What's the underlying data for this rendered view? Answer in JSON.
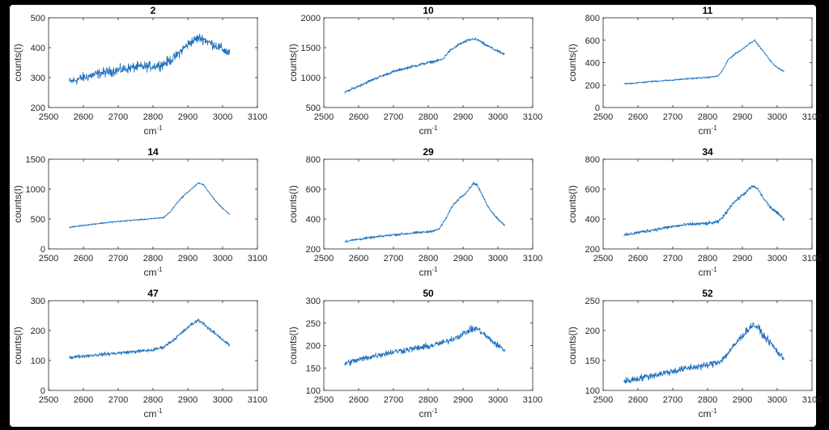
{
  "colors": {
    "line": "#1f72bd",
    "axis": "#262626",
    "background": "#ffffff",
    "frame": "#000000"
  },
  "chart_data": [
    {
      "type": "line",
      "title": "2",
      "xlabel": "cm",
      "xlabel_sup": "-1",
      "ylabel": "counts(I)",
      "xlim": [
        2500,
        3100
      ],
      "ylim": [
        200,
        500
      ],
      "xticks": [
        2500,
        2600,
        2700,
        2800,
        2900,
        3000,
        3100
      ],
      "yticks": [
        200,
        300,
        400,
        500
      ],
      "x_range": [
        2560,
        3020
      ],
      "noise": 14,
      "series": [
        {
          "x": [
            2560,
            2600,
            2650,
            2700,
            2750,
            2800,
            2830,
            2860,
            2890,
            2910,
            2930,
            2945,
            2960,
            2980,
            3000,
            3020
          ],
          "y": [
            285,
            300,
            315,
            325,
            335,
            338,
            345,
            365,
            400,
            420,
            432,
            430,
            418,
            408,
            395,
            380
          ]
        }
      ]
    },
    {
      "type": "line",
      "title": "10",
      "xlabel": "cm",
      "xlabel_sup": "-1",
      "ylabel": "counts(I)",
      "xlim": [
        2500,
        3100
      ],
      "ylim": [
        500,
        2000
      ],
      "xticks": [
        2500,
        2600,
        2700,
        2800,
        2900,
        3000,
        3100
      ],
      "yticks": [
        500,
        1000,
        1500,
        2000
      ],
      "x_range": [
        2560,
        3020
      ],
      "noise": 20,
      "series": [
        {
          "x": [
            2560,
            2600,
            2650,
            2700,
            2750,
            2800,
            2840,
            2860,
            2890,
            2910,
            2930,
            2945,
            2960,
            2980,
            3000,
            3020
          ],
          "y": [
            750,
            860,
            990,
            1100,
            1180,
            1250,
            1300,
            1440,
            1560,
            1610,
            1650,
            1620,
            1560,
            1500,
            1440,
            1380
          ]
        }
      ]
    },
    {
      "type": "line",
      "title": "11",
      "xlabel": "cm",
      "xlabel_sup": "-1",
      "ylabel": "counts(I)",
      "xlim": [
        2500,
        3100
      ],
      "ylim": [
        0,
        800
      ],
      "xticks": [
        2500,
        2600,
        2700,
        2800,
        2900,
        3000,
        3100
      ],
      "yticks": [
        0,
        200,
        400,
        600,
        800
      ],
      "x_range": [
        2560,
        3020
      ],
      "noise": 6,
      "series": [
        {
          "x": [
            2560,
            2600,
            2650,
            2700,
            2750,
            2800,
            2830,
            2845,
            2860,
            2880,
            2900,
            2920,
            2935,
            2950,
            2970,
            2990,
            3020
          ],
          "y": [
            210,
            220,
            235,
            245,
            258,
            268,
            280,
            340,
            430,
            480,
            520,
            570,
            600,
            540,
            460,
            380,
            320
          ]
        }
      ]
    },
    {
      "type": "line",
      "title": "14",
      "xlabel": "cm",
      "xlabel_sup": "-1",
      "ylabel": "counts(I)",
      "xlim": [
        2500,
        3100
      ],
      "ylim": [
        0,
        1500
      ],
      "xticks": [
        2500,
        2600,
        2700,
        2800,
        2900,
        3000,
        3100
      ],
      "yticks": [
        0,
        500,
        1000,
        1500
      ],
      "x_range": [
        2560,
        3020
      ],
      "noise": 10,
      "series": [
        {
          "x": [
            2560,
            2600,
            2650,
            2700,
            2750,
            2800,
            2830,
            2850,
            2870,
            2890,
            2910,
            2930,
            2945,
            2960,
            2980,
            3000,
            3020
          ],
          "y": [
            360,
            395,
            430,
            460,
            485,
            505,
            525,
            620,
            780,
            900,
            1000,
            1100,
            1080,
            950,
            800,
            680,
            580
          ]
        }
      ]
    },
    {
      "type": "line",
      "title": "29",
      "xlabel": "cm",
      "xlabel_sup": "-1",
      "ylabel": "counts(I)",
      "xlim": [
        2500,
        3100
      ],
      "ylim": [
        200,
        800
      ],
      "xticks": [
        2500,
        2600,
        2700,
        2800,
        2900,
        3000,
        3100
      ],
      "yticks": [
        200,
        400,
        600,
        800
      ],
      "x_range": [
        2560,
        3020
      ],
      "noise": 7,
      "series": [
        {
          "x": [
            2560,
            2600,
            2650,
            2700,
            2750,
            2800,
            2830,
            2850,
            2870,
            2890,
            2910,
            2930,
            2940,
            2955,
            2975,
            3000,
            3020
          ],
          "y": [
            250,
            265,
            280,
            295,
            305,
            315,
            330,
            400,
            490,
            540,
            580,
            640,
            630,
            560,
            470,
            400,
            360
          ]
        }
      ]
    },
    {
      "type": "line",
      "title": "34",
      "xlabel": "cm",
      "xlabel_sup": "-1",
      "ylabel": "counts(I)",
      "xlim": [
        2500,
        3100
      ],
      "ylim": [
        200,
        800
      ],
      "xticks": [
        2500,
        2600,
        2700,
        2800,
        2900,
        3000,
        3100
      ],
      "yticks": [
        200,
        400,
        600,
        800
      ],
      "x_range": [
        2560,
        3020
      ],
      "noise": 10,
      "series": [
        {
          "x": [
            2560,
            2600,
            2650,
            2700,
            2750,
            2800,
            2830,
            2850,
            2870,
            2890,
            2910,
            2930,
            2945,
            2960,
            2980,
            3000,
            3020
          ],
          "y": [
            290,
            310,
            330,
            350,
            365,
            370,
            380,
            430,
            500,
            540,
            580,
            620,
            600,
            540,
            480,
            440,
            400
          ]
        }
      ]
    },
    {
      "type": "line",
      "title": "47",
      "xlabel": "cm",
      "xlabel_sup": "-1",
      "ylabel": "counts(I)",
      "xlim": [
        2500,
        3100
      ],
      "ylim": [
        0,
        300
      ],
      "xticks": [
        2500,
        2600,
        2700,
        2800,
        2900,
        3000,
        3100
      ],
      "yticks": [
        0,
        100,
        200,
        300
      ],
      "x_range": [
        2560,
        3020
      ],
      "noise": 5,
      "series": [
        {
          "x": [
            2560,
            2600,
            2650,
            2700,
            2750,
            2800,
            2830,
            2860,
            2890,
            2910,
            2930,
            2945,
            2960,
            2980,
            3000,
            3020
          ],
          "y": [
            110,
            115,
            120,
            125,
            130,
            135,
            145,
            170,
            200,
            220,
            235,
            225,
            205,
            190,
            170,
            150
          ]
        }
      ]
    },
    {
      "type": "line",
      "title": "50",
      "xlabel": "cm",
      "xlabel_sup": "-1",
      "ylabel": "counts(I)",
      "xlim": [
        2500,
        3100
      ],
      "ylim": [
        100,
        300
      ],
      "xticks": [
        2500,
        2600,
        2700,
        2800,
        2900,
        3000,
        3100
      ],
      "yticks": [
        100,
        150,
        200,
        250,
        300
      ],
      "x_range": [
        2560,
        3020
      ],
      "noise": 6,
      "series": [
        {
          "x": [
            2560,
            2600,
            2650,
            2700,
            2750,
            2800,
            2850,
            2890,
            2920,
            2940,
            2960,
            2980,
            3000,
            3020
          ],
          "y": [
            160,
            168,
            178,
            186,
            192,
            198,
            208,
            222,
            235,
            238,
            225,
            212,
            200,
            190
          ]
        }
      ]
    },
    {
      "type": "line",
      "title": "52",
      "xlabel": "cm",
      "xlabel_sup": "-1",
      "ylabel": "counts(I)",
      "xlim": [
        2500,
        3100
      ],
      "ylim": [
        100,
        250
      ],
      "xticks": [
        2500,
        2600,
        2700,
        2800,
        2900,
        3000,
        3100
      ],
      "yticks": [
        100,
        150,
        200,
        250
      ],
      "x_range": [
        2560,
        3020
      ],
      "noise": 5,
      "series": [
        {
          "x": [
            2560,
            2600,
            2650,
            2700,
            2750,
            2800,
            2840,
            2870,
            2890,
            2910,
            2930,
            2945,
            2960,
            2980,
            3000,
            3020
          ],
          "y": [
            115,
            120,
            126,
            132,
            138,
            142,
            150,
            170,
            185,
            198,
            210,
            205,
            192,
            180,
            165,
            152
          ]
        }
      ]
    }
  ]
}
